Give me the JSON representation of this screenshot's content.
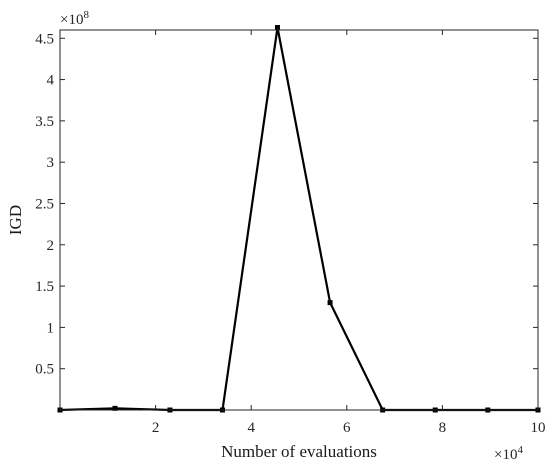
{
  "chart_data": {
    "type": "line",
    "title": "",
    "xlabel": "Number of evaluations",
    "ylabel": "IGD",
    "x_exponent_label": "×10",
    "x_exponent_power": "4",
    "y_exponent_label": "×10",
    "y_exponent_power": "8",
    "xlim": [
      0,
      10
    ],
    "ylim": [
      0,
      4.6
    ],
    "xticks": [
      2,
      4,
      6,
      8,
      10
    ],
    "xtick_labels": [
      "2",
      "4",
      "6",
      "8",
      "10"
    ],
    "yticks": [
      0.5,
      1,
      1.5,
      2,
      2.5,
      3,
      3.5,
      4,
      4.5
    ],
    "ytick_labels": [
      "0.5",
      "1",
      "1.5",
      "2",
      "2.5",
      "3",
      "3.5",
      "4",
      "4.5"
    ],
    "grid": false,
    "series": [
      {
        "x": [
          0.0,
          1.15,
          2.3,
          3.4,
          4.55,
          5.65,
          6.75,
          7.85,
          8.95,
          10.0
        ],
        "y": [
          0.0,
          0.02,
          0.0,
          0.0,
          4.63,
          1.3,
          0.0,
          0.0,
          0.0,
          0.0
        ],
        "color": "#000000"
      }
    ]
  }
}
